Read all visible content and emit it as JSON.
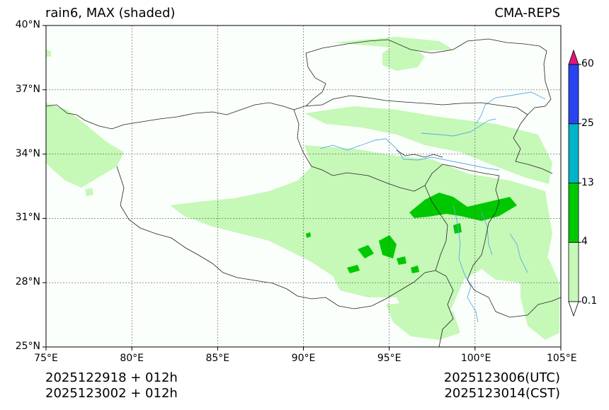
{
  "header": {
    "left_title": "rain6, MAX (shaded)",
    "right_title": "CMA-REPS"
  },
  "map": {
    "lon_range": [
      75,
      105
    ],
    "lat_range": [
      25,
      40
    ],
    "x_ticks": [
      "75°E",
      "80°E",
      "85°E",
      "90°E",
      "95°E",
      "100°E",
      "105°E"
    ],
    "y_ticks": [
      "40°N",
      "37°N",
      "34°N",
      "31°N",
      "28°N",
      "25°N"
    ],
    "gridlines": true
  },
  "colorbar": {
    "levels": [
      "0.1",
      "4",
      "13",
      "25",
      "60"
    ],
    "colors": {
      "under": "#ffffff",
      "band_0_1_to_4": "#c6f8b8",
      "band_4_to_13": "#00c800",
      "band_13_to_25": "#00b4c8",
      "band_25_to_60": "#2844f0",
      "over": "#e0167a"
    }
  },
  "footer": {
    "init_line_1": "2025122918  +  012h",
    "init_line_2": "2025123002  +  012h",
    "valid_utc": "2025123006(UTC)",
    "valid_cst": "2025123014(CST)"
  },
  "colors": {
    "border": "#222222",
    "river": "#5aaae6",
    "grid": "#555555",
    "land_bg": "#fbfffb"
  }
}
